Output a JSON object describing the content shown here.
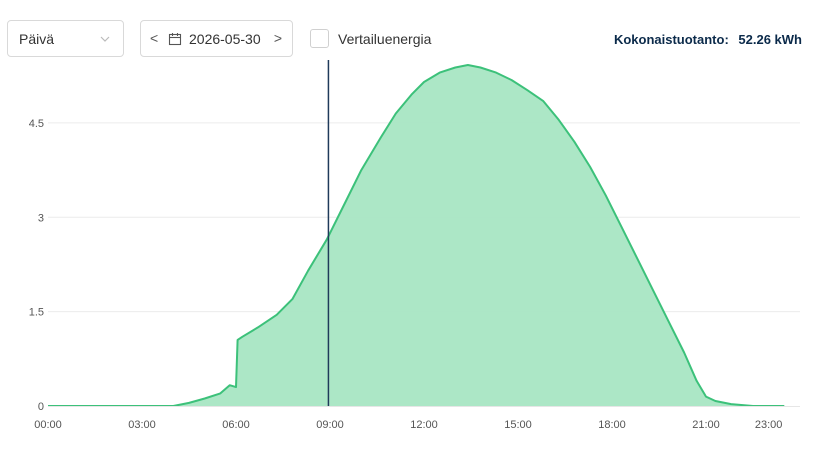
{
  "toolbar": {
    "period_select": "Päivä",
    "date": "2026-05-30",
    "prev_label": "<",
    "next_label": ">",
    "compare_label": "Vertailuenergia",
    "total_label": "Kokonaistuotanto:",
    "total_value": "52.26 kWh"
  },
  "chart_data": {
    "type": "area",
    "color": "#3cc17a",
    "fill": "#a8e6c3",
    "cursor_x": 8.95,
    "ylim": [
      0,
      5.5
    ],
    "xlim": [
      0,
      24
    ],
    "y_ticks": [
      0,
      1.5,
      3,
      4.5
    ],
    "y_tick_labels": [
      "0",
      "1.5",
      "3",
      "4.5"
    ],
    "x_ticks": [
      0,
      3,
      6,
      9,
      12,
      15,
      18,
      21,
      23
    ],
    "x_tick_labels": [
      "00:00",
      "03:00",
      "06:00",
      "09:00",
      "12:00",
      "15:00",
      "18:00",
      "21:00",
      "23:00"
    ],
    "x": [
      0,
      4.0,
      4.5,
      5.0,
      5.5,
      5.8,
      6.0,
      6.05,
      6.2,
      6.7,
      7.3,
      7.8,
      8.3,
      8.9,
      9.5,
      10.0,
      10.6,
      11.1,
      11.6,
      12.0,
      12.5,
      13.0,
      13.4,
      13.8,
      14.3,
      14.8,
      15.3,
      15.8,
      16.3,
      16.8,
      17.3,
      17.8,
      18.3,
      18.8,
      19.3,
      19.8,
      20.3,
      20.7,
      21.0,
      21.3,
      21.8,
      22.5,
      23.0,
      23.5
    ],
    "y": [
      0,
      0,
      0.05,
      0.12,
      0.2,
      0.33,
      0.3,
      1.05,
      1.1,
      1.25,
      1.45,
      1.7,
      2.15,
      2.65,
      3.25,
      3.75,
      4.25,
      4.65,
      4.95,
      5.15,
      5.3,
      5.38,
      5.42,
      5.38,
      5.3,
      5.18,
      5.02,
      4.85,
      4.55,
      4.2,
      3.8,
      3.35,
      2.85,
      2.35,
      1.85,
      1.35,
      0.85,
      0.4,
      0.15,
      0.08,
      0.03,
      0.0,
      0.0,
      0.0
    ]
  }
}
